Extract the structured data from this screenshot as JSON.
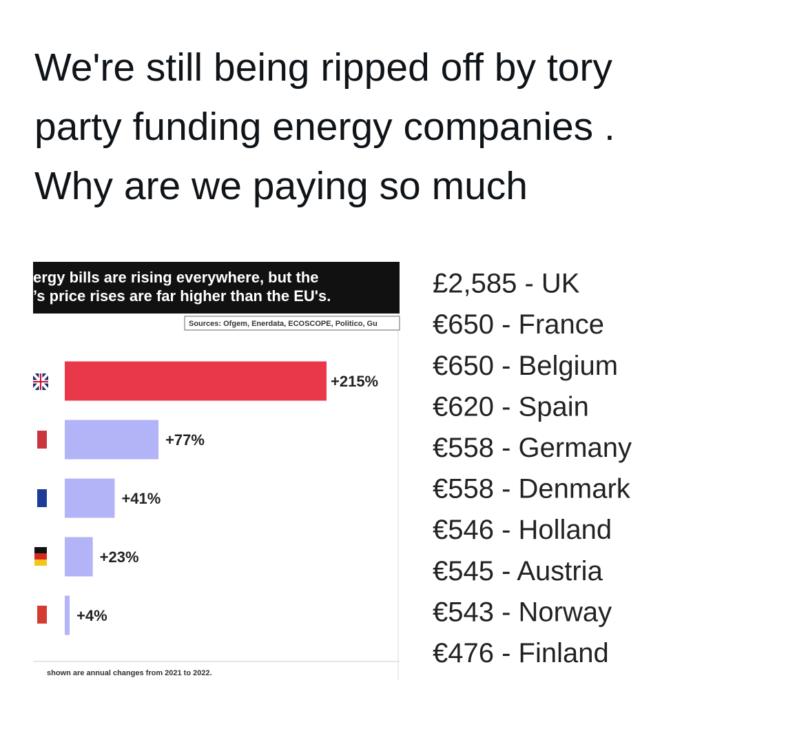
{
  "tweet": {
    "text_lines": [
      "We're still being ripped off by tory",
      "party funding energy companies .",
      "Why are we paying so much"
    ]
  },
  "chart_data": {
    "type": "bar",
    "orientation": "horizontal",
    "title_lines": [
      "ergy bills are rising everywhere, but the",
      "’s price rises are far higher than the EU's."
    ],
    "source": "Sources: Ofgem, Enerdata, ECOSCOPE, Politico, Gu",
    "footnote": "shown are annual changes from 2021 to 2022.",
    "categories": [
      null,
      null,
      null,
      null,
      null
    ],
    "values": [
      215,
      77,
      41,
      23,
      4
    ],
    "value_labels": [
      "+215%",
      "+77%",
      "+41%",
      "+23%",
      "+4%"
    ],
    "colors": [
      "#e8384a",
      "#b3b3f7",
      "#b3b3f7",
      "#b3b3f7",
      "#b3b3f7"
    ]
  },
  "price_list": [
    "£2,585 - UK",
    "€650 - France",
    "€650 - Belgium",
    "€620 - Spain",
    "€558 - Germany",
    "€558 - Denmark",
    "€546 - Holland",
    "€545 - Austria",
    "€543 - Norway",
    "€476 - Finland"
  ]
}
